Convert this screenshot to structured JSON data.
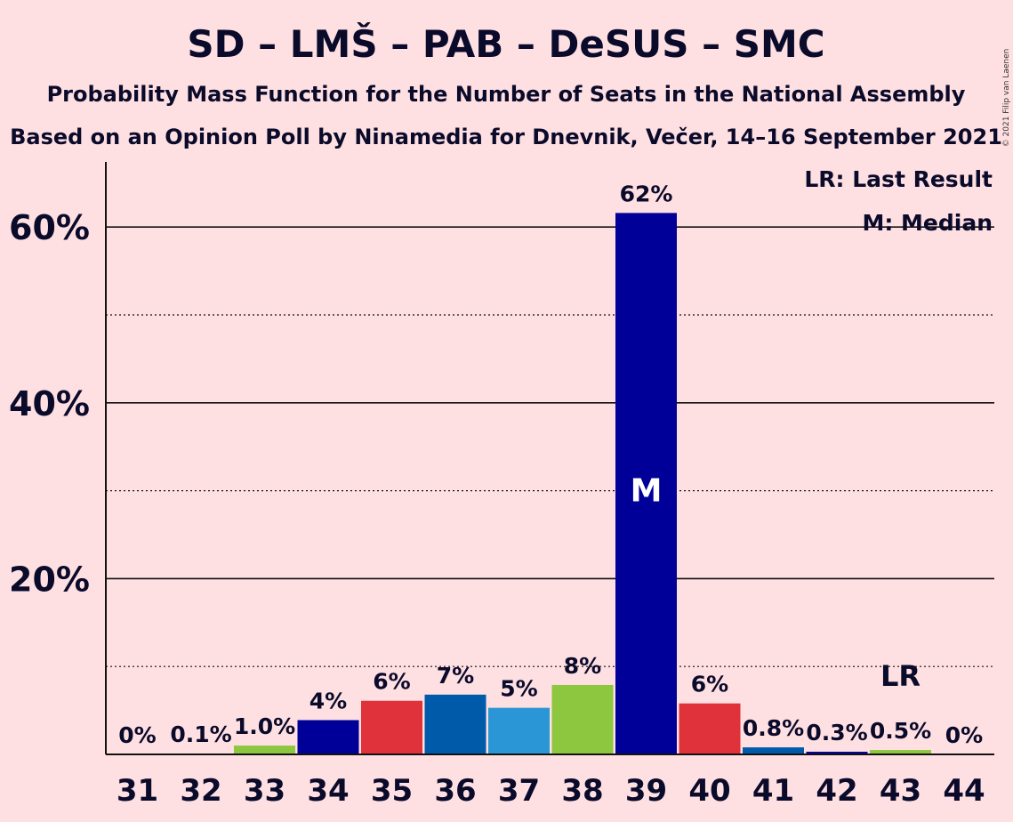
{
  "copyright": "© 2021 Filip van Laenen",
  "chart_data": {
    "type": "bar",
    "title": "SD – LMŠ – PAB – DeSUS – SMC",
    "subtitle": "Probability Mass Function for the Number of Seats in the National Assembly",
    "subtitle2": "Based on an Opinion Poll by Ninamedia for Dnevnik, Večer, 14–16 September 2021",
    "xlabel": "",
    "ylabel": "",
    "ylim": [
      0,
      67
    ],
    "yticks": [
      {
        "value": 20,
        "label": "20%"
      },
      {
        "value": 40,
        "label": "40%"
      },
      {
        "value": 60,
        "label": "60%"
      }
    ],
    "minor_gridlines": [
      10,
      30,
      50
    ],
    "legend": {
      "placement": "top-right",
      "last_result": "LR: Last Result",
      "median": "M: Median"
    },
    "categories": [
      "31",
      "32",
      "33",
      "34",
      "35",
      "36",
      "37",
      "38",
      "39",
      "40",
      "41",
      "42",
      "43",
      "44"
    ],
    "values": [
      0,
      0.1,
      1.0,
      3.9,
      6.1,
      6.8,
      5.3,
      7.9,
      61.6,
      5.8,
      0.8,
      0.3,
      0.5,
      0
    ],
    "labels": [
      "0%",
      "0.1%",
      "1.0%",
      "4%",
      "6%",
      "7%",
      "5%",
      "8%",
      "62%",
      "6%",
      "0.8%",
      "0.3%",
      "0.5%",
      "0%"
    ],
    "colors": [
      "#000099",
      "#000099",
      "#8dc63f",
      "#000099",
      "#e0323a",
      "#005aaa",
      "#2b96d5",
      "#8dc63f",
      "#000099",
      "#e0323a",
      "#005aaa",
      "#000099",
      "#8dc63f",
      "#000099"
    ],
    "median": {
      "category": "39",
      "label": "M"
    },
    "last_result": {
      "category": "43",
      "label": "LR"
    }
  }
}
